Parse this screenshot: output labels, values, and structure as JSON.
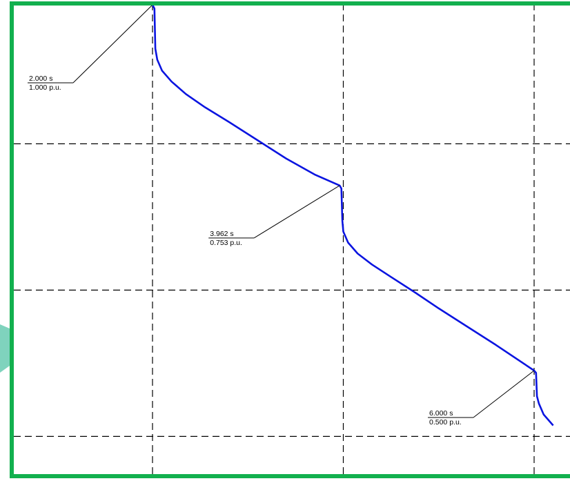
{
  "colors": {
    "frame": "#12b04e",
    "curve": "#0a14e0",
    "grid": "#000000",
    "annotation": "#000000",
    "background": "#ffffff",
    "edge_shape": "#7fd3bd"
  },
  "chart_data": {
    "type": "line",
    "title": "",
    "xlabel": "",
    "ylabel": "",
    "x_unit": "s",
    "y_unit": "p.u.",
    "xlim": [
      1.5,
      6.2
    ],
    "ylim": [
      0.38,
      1.0
    ],
    "grid": true,
    "grid_style": "dashed",
    "x_gridlines": [
      2.0,
      4.0,
      6.0
    ],
    "y_gridlines": [
      0.81,
      0.61,
      0.41
    ],
    "legend": "none",
    "series": [
      {
        "name": "",
        "x": [
          2.0,
          2.02,
          2.03,
          2.05,
          2.1,
          2.2,
          2.35,
          2.55,
          2.8,
          3.1,
          3.4,
          3.7,
          3.962,
          3.98,
          3.99,
          4.0,
          4.05,
          4.15,
          4.3,
          4.5,
          4.75,
          5.0,
          5.3,
          5.6,
          6.0,
          6.02,
          6.03,
          6.05,
          6.1,
          6.2
        ],
        "y": [
          1.0,
          0.995,
          0.94,
          0.925,
          0.91,
          0.895,
          0.878,
          0.86,
          0.84,
          0.815,
          0.79,
          0.768,
          0.753,
          0.749,
          0.705,
          0.69,
          0.675,
          0.66,
          0.645,
          0.628,
          0.607,
          0.585,
          0.56,
          0.535,
          0.5,
          0.497,
          0.465,
          0.455,
          0.44,
          0.425
        ]
      }
    ],
    "annotations": [
      {
        "x": 2.0,
        "y": 1.0,
        "label_time": "2.000 s",
        "label_value": "1.000 p.u."
      },
      {
        "x": 3.962,
        "y": 0.753,
        "label_time": "3.962 s",
        "label_value": "0.753 p.u."
      },
      {
        "x": 6.0,
        "y": 0.5,
        "label_time": "6.000 s",
        "label_value": "0.500 p.u."
      }
    ]
  }
}
